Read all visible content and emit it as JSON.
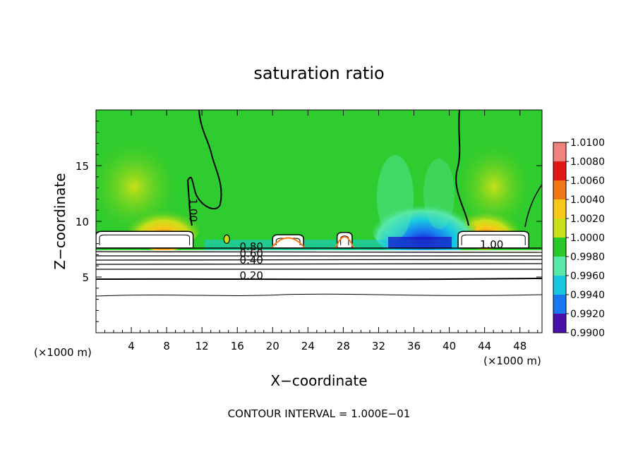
{
  "chart_data": {
    "type": "heatmap",
    "title": "saturation ratio",
    "xlabel": "X−coordinate",
    "ylabel": "Z−coordinate",
    "x_unit_left": "(×1000 m)",
    "x_unit_right": "(×1000 m)",
    "xlim": [
      0,
      50.5
    ],
    "ylim": [
      0,
      20
    ],
    "xticks": [
      4,
      8,
      12,
      16,
      20,
      24,
      28,
      32,
      36,
      40,
      44,
      48
    ],
    "yticks": [
      5,
      10,
      15
    ],
    "footer": "CONTOUR INTERVAL = 1.000E−01",
    "colorbar": {
      "levels": [
        "1.0100",
        "1.0080",
        "1.0060",
        "1.0040",
        "1.0020",
        "1.0000",
        "0.9980",
        "0.9960",
        "0.9940",
        "0.9920",
        "0.9900"
      ],
      "colors": [
        "#f2827c",
        "#e01818",
        "#f07818",
        "#f8c818",
        "#c8e018",
        "#28c828",
        "#58e8a8",
        "#18c8e0",
        "#1878f0",
        "#1818c8",
        "#780888"
      ]
    },
    "features": {
      "cloud_tops": [
        {
          "x0": 0,
          "x1": 11,
          "top": 9.1,
          "peak_x": 7.5
        },
        {
          "x0": 20,
          "x1": 23.5,
          "top": 8.8,
          "peak_x": 21.5
        },
        {
          "x0": 27.3,
          "x1": 29,
          "top": 9.0,
          "peak_x": 28
        },
        {
          "x0": 41,
          "x1": 49,
          "top": 9.1,
          "peak_x": 44
        }
      ],
      "dry_region": {
        "x0": 32,
        "x1": 41,
        "z0": 7.6,
        "z1": 10
      }
    },
    "contour_labels": [
      {
        "text": "1.00",
        "x": 10.6,
        "z": 11.0
      },
      {
        "text": "1.00",
        "x": 44.8,
        "z": 7.6
      },
      {
        "text": "0.80",
        "x": 17.6,
        "z": 7.4
      },
      {
        "text": "0.60",
        "x": 17.6,
        "z": 6.8
      },
      {
        "text": "0.40",
        "x": 17.6,
        "z": 6.2
      },
      {
        "text": "0.20",
        "x": 17.6,
        "z": 4.8
      }
    ]
  }
}
